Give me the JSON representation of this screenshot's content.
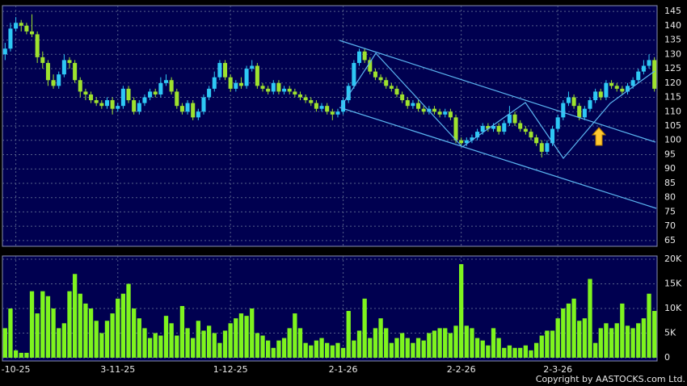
{
  "chart_data": {
    "type": "candlestick",
    "categories": [
      null,
      null,
      "-10-25",
      null,
      null,
      null,
      null,
      null,
      null,
      null,
      null,
      null,
      null,
      null,
      null,
      null,
      null,
      null,
      null,
      null,
      null,
      "3-11-25",
      null,
      null,
      null,
      null,
      null,
      null,
      null,
      null,
      null,
      null,
      null,
      null,
      null,
      null,
      null,
      null,
      null,
      null,
      null,
      null,
      "1-12-25",
      null,
      null,
      null,
      null,
      null,
      null,
      null,
      null,
      null,
      null,
      null,
      null,
      null,
      null,
      null,
      null,
      null,
      null,
      null,
      null,
      "2-1-26",
      null,
      null,
      null,
      null,
      null,
      null,
      null,
      null,
      null,
      null,
      null,
      null,
      null,
      null,
      null,
      null,
      null,
      null,
      null,
      null,
      null,
      "2-2-26",
      null,
      null,
      null,
      null,
      null,
      null,
      null,
      null,
      null,
      null,
      null,
      null,
      null,
      null,
      null,
      null,
      null,
      "2-3-26",
      null,
      null,
      null,
      null,
      null,
      null,
      null,
      null,
      null,
      null,
      null,
      null,
      null,
      null,
      null,
      null,
      null,
      null
    ],
    "open": [
      130,
      132,
      139,
      141,
      140,
      138,
      137,
      129,
      127,
      121,
      119,
      123,
      128,
      127,
      121,
      117,
      116,
      114,
      113,
      112,
      114,
      111,
      112,
      118,
      114,
      110,
      113,
      115,
      117,
      116,
      120,
      121,
      117,
      112,
      110,
      113,
      108,
      110,
      115,
      118,
      122,
      127,
      122,
      118,
      120,
      119,
      125,
      126,
      119,
      118,
      117,
      120,
      117,
      118,
      117,
      116,
      115,
      114,
      113,
      111,
      112,
      110,
      109,
      110,
      114,
      119,
      127,
      131,
      128,
      124,
      122,
      121,
      119,
      118,
      116,
      114,
      112,
      113,
      111,
      110,
      111,
      110,
      109,
      110,
      108,
      100,
      99,
      100,
      101,
      103,
      105,
      104,
      105,
      103,
      106,
      109,
      106,
      104,
      103,
      101,
      99,
      96,
      99,
      104,
      108,
      113,
      115,
      112,
      108,
      111,
      114,
      117,
      115,
      120,
      119,
      118,
      117,
      119,
      121,
      124,
      126,
      128
    ],
    "high": [
      134,
      141,
      143,
      142,
      141,
      144,
      138,
      131,
      128,
      123,
      124,
      130,
      129,
      128,
      122,
      118,
      117,
      115,
      114,
      115,
      115,
      113,
      119,
      119,
      115,
      114,
      116,
      118,
      118,
      122,
      123,
      122,
      118,
      113,
      114,
      114,
      111,
      116,
      119,
      124,
      128,
      128,
      123,
      121,
      122,
      126,
      128,
      127,
      120,
      119,
      121,
      121,
      119,
      119,
      118,
      117,
      116,
      115,
      114,
      113,
      113,
      111,
      111,
      115,
      120,
      128,
      132,
      132,
      129,
      125,
      123,
      122,
      120,
      119,
      117,
      115,
      114,
      114,
      112,
      112,
      112,
      111,
      111,
      111,
      109,
      101,
      101,
      102,
      104,
      106,
      106,
      106,
      106,
      107,
      112,
      110,
      107,
      105,
      104,
      102,
      100,
      100,
      105,
      109,
      114,
      117,
      116,
      113,
      112,
      115,
      118,
      118,
      121,
      121,
      120,
      119,
      120,
      122,
      125,
      128,
      130,
      129
    ],
    "low": [
      128,
      131,
      138,
      138,
      137,
      136,
      127,
      125,
      119,
      118,
      118,
      122,
      125,
      120,
      115,
      114,
      113,
      112,
      111,
      111,
      109,
      110,
      111,
      113,
      109,
      109,
      112,
      114,
      115,
      115,
      119,
      116,
      111,
      109,
      109,
      107,
      107,
      109,
      114,
      117,
      121,
      121,
      117,
      117,
      118,
      118,
      124,
      118,
      117,
      116,
      116,
      116,
      116,
      116,
      115,
      114,
      113,
      112,
      110,
      110,
      109,
      107,
      108,
      109,
      113,
      118,
      126,
      127,
      123,
      121,
      120,
      118,
      117,
      115,
      113,
      111,
      111,
      110,
      109,
      109,
      109,
      108,
      108,
      107,
      99,
      98,
      98,
      99,
      100,
      102,
      103,
      103,
      102,
      102,
      105,
      105,
      103,
      102,
      100,
      98,
      94,
      95,
      98,
      103,
      107,
      112,
      111,
      107,
      107,
      110,
      113,
      114,
      114,
      118,
      117,
      116,
      116,
      118,
      120,
      123,
      125,
      117
    ],
    "close": [
      132,
      139,
      141,
      140,
      138,
      137,
      129,
      127,
      121,
      119,
      123,
      128,
      127,
      121,
      117,
      116,
      114,
      113,
      112,
      114,
      111,
      112,
      118,
      114,
      110,
      113,
      115,
      117,
      116,
      120,
      121,
      117,
      112,
      110,
      113,
      108,
      110,
      115,
      118,
      122,
      127,
      122,
      118,
      120,
      119,
      125,
      126,
      119,
      118,
      117,
      120,
      117,
      118,
      117,
      116,
      115,
      114,
      113,
      111,
      112,
      110,
      109,
      110,
      114,
      119,
      127,
      131,
      128,
      124,
      122,
      121,
      119,
      118,
      116,
      114,
      112,
      113,
      111,
      110,
      111,
      110,
      109,
      110,
      108,
      100,
      99,
      100,
      101,
      103,
      105,
      104,
      105,
      103,
      106,
      109,
      106,
      104,
      103,
      101,
      99,
      96,
      99,
      104,
      108,
      113,
      115,
      112,
      108,
      111,
      114,
      117,
      115,
      120,
      119,
      118,
      117,
      119,
      121,
      124,
      126,
      128,
      118
    ],
    "volume": [
      6000,
      10000,
      1500,
      1000,
      1000,
      13500,
      9000,
      13500,
      12500,
      10000,
      6000,
      7000,
      13500,
      17000,
      13000,
      11000,
      10000,
      7500,
      5000,
      7500,
      9000,
      12000,
      13000,
      15000,
      10000,
      8000,
      6000,
      4000,
      5000,
      4500,
      8500,
      7000,
      4500,
      10500,
      6000,
      4000,
      7500,
      5500,
      6500,
      5000,
      3000,
      5500,
      7000,
      8000,
      9000,
      8500,
      10000,
      5000,
      4500,
      3500,
      2000,
      3500,
      4000,
      6000,
      9000,
      6000,
      3000,
      2500,
      3500,
      4000,
      3000,
      2500,
      3000,
      2000,
      9500,
      3500,
      5500,
      12000,
      4000,
      6000,
      8000,
      6000,
      3000,
      4000,
      5000,
      4000,
      3000,
      4000,
      3500,
      5000,
      5500,
      6000,
      6000,
      5000,
      6500,
      19000,
      6500,
      6000,
      4000,
      3500,
      2500,
      6000,
      4000,
      2000,
      2500,
      2000,
      2000,
      2500,
      1500,
      3000,
      4500,
      5500,
      5500,
      8000,
      10000,
      11000,
      12000,
      7500,
      8000,
      16000,
      3000,
      6000,
      7000,
      6000,
      7000,
      11000,
      6500,
      6000,
      7000,
      8000,
      13000,
      9500
    ],
    "up_color": "#2ec8f5",
    "down_color": "#9ee22e",
    "volume_color": "#7ef41e",
    "ylim": [
      63,
      147
    ],
    "yticks": [
      65,
      70,
      75,
      80,
      85,
      90,
      95,
      100,
      105,
      110,
      115,
      120,
      125,
      130,
      135,
      140,
      145
    ],
    "volume_ylim": [
      0,
      20000
    ],
    "volume_yticks": [
      0,
      {
        "value": 5000,
        "label": "5K"
      },
      {
        "value": 10000,
        "label": "10K"
      },
      {
        "value": 15000,
        "label": "15K"
      },
      {
        "value": 20000,
        "label": "20K"
      }
    ],
    "grid": true
  },
  "footer": {
    "copyright": "Copyright by AASTOCKS.com Ltd."
  }
}
